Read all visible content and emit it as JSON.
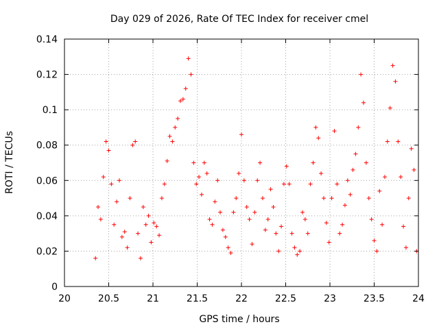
{
  "chart_data": {
    "type": "scatter",
    "title": "Day 029 of 2026, Rate Of TEC Index for receiver cmel",
    "xlabel": "GPS time / hours",
    "ylabel": "ROTI / TECUs",
    "xlim": [
      20,
      24
    ],
    "ylim": [
      0,
      0.14
    ],
    "x_ticks": [
      20,
      20.5,
      21,
      21.5,
      22,
      22.5,
      23,
      23.5,
      24
    ],
    "x_tick_labels": [
      "20",
      "20.5",
      "21",
      "21.5",
      "22",
      "22.5",
      "23",
      "23.5",
      "24"
    ],
    "y_ticks": [
      0,
      0.02,
      0.04,
      0.06,
      0.08,
      0.1,
      0.12,
      0.14
    ],
    "y_tick_labels": [
      "0",
      "0.02",
      "0.04",
      "0.06",
      "0.08",
      "0.1",
      "0.12",
      "0.14"
    ],
    "grid": true,
    "marker": "+",
    "series": [
      {
        "name": "ROTI",
        "color": "#ff0000",
        "x": [
          20.35,
          20.38,
          20.41,
          20.44,
          20.47,
          20.5,
          20.53,
          20.56,
          20.59,
          20.62,
          20.65,
          20.68,
          20.71,
          20.74,
          20.77,
          20.8,
          20.83,
          20.86,
          20.89,
          20.92,
          20.95,
          20.98,
          21.01,
          21.04,
          21.07,
          21.1,
          21.13,
          21.16,
          21.19,
          21.22,
          21.25,
          21.28,
          21.31,
          21.34,
          21.37,
          21.4,
          21.43,
          21.46,
          21.49,
          21.52,
          21.55,
          21.58,
          21.61,
          21.64,
          21.67,
          21.7,
          21.73,
          21.76,
          21.79,
          21.82,
          21.85,
          21.88,
          21.91,
          21.94,
          21.97,
          22.0,
          22.03,
          22.06,
          22.09,
          22.12,
          22.15,
          22.18,
          22.21,
          22.24,
          22.27,
          22.3,
          22.33,
          22.36,
          22.39,
          22.42,
          22.45,
          22.48,
          22.51,
          22.54,
          22.57,
          22.6,
          22.63,
          22.66,
          22.69,
          22.72,
          22.75,
          22.78,
          22.81,
          22.84,
          22.87,
          22.9,
          22.93,
          22.96,
          22.99,
          23.02,
          23.05,
          23.08,
          23.11,
          23.14,
          23.17,
          23.2,
          23.23,
          23.26,
          23.29,
          23.32,
          23.35,
          23.38,
          23.41,
          23.44,
          23.47,
          23.5,
          23.53,
          23.56,
          23.59,
          23.62,
          23.65,
          23.68,
          23.71,
          23.74,
          23.77,
          23.8,
          23.83,
          23.86,
          23.89,
          23.92,
          23.95,
          23.98
        ],
        "y": [
          0.016,
          0.045,
          0.038,
          0.062,
          0.082,
          0.077,
          0.058,
          0.035,
          0.048,
          0.06,
          0.028,
          0.031,
          0.022,
          0.05,
          0.08,
          0.082,
          0.03,
          0.016,
          0.045,
          0.035,
          0.04,
          0.025,
          0.036,
          0.034,
          0.029,
          0.05,
          0.058,
          0.071,
          0.085,
          0.082,
          0.09,
          0.095,
          0.105,
          0.106,
          0.112,
          0.129,
          0.12,
          0.07,
          0.058,
          0.062,
          0.052,
          0.07,
          0.064,
          0.038,
          0.035,
          0.048,
          0.06,
          0.042,
          0.032,
          0.028,
          0.022,
          0.019,
          0.042,
          0.05,
          0.064,
          0.086,
          0.06,
          0.045,
          0.038,
          0.024,
          0.042,
          0.06,
          0.07,
          0.05,
          0.032,
          0.038,
          0.055,
          0.045,
          0.03,
          0.02,
          0.034,
          0.058,
          0.068,
          0.058,
          0.03,
          0.022,
          0.018,
          0.02,
          0.042,
          0.038,
          0.03,
          0.058,
          0.07,
          0.09,
          0.084,
          0.064,
          0.05,
          0.036,
          0.025,
          0.05,
          0.088,
          0.058,
          0.03,
          0.035,
          0.046,
          0.06,
          0.052,
          0.066,
          0.075,
          0.09,
          0.12,
          0.104,
          0.07,
          0.05,
          0.038,
          0.026,
          0.02,
          0.054,
          0.035,
          0.062,
          0.082,
          0.101,
          0.125,
          0.116,
          0.082,
          0.062,
          0.034,
          0.022,
          0.05,
          0.078,
          0.066,
          0.02
        ]
      }
    ]
  }
}
